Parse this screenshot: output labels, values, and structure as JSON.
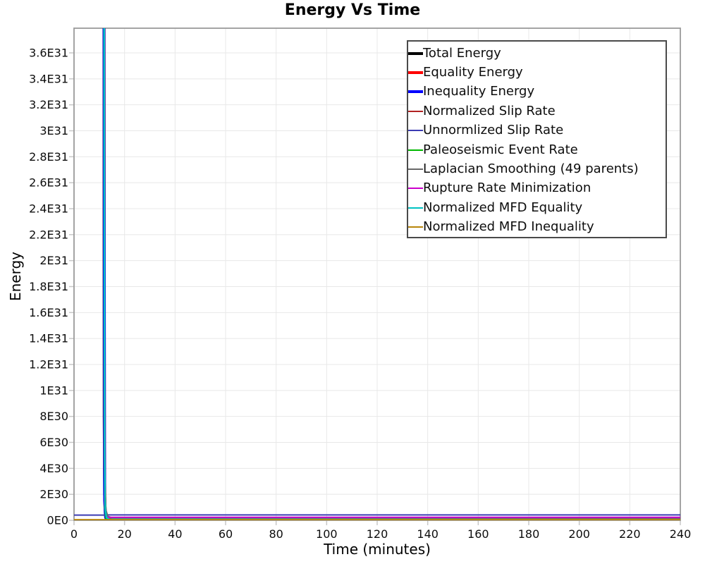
{
  "page": {
    "background": "#ffffff"
  },
  "chart_data": {
    "type": "line",
    "title": "Energy Vs Time",
    "xlabel": "Time (minutes)",
    "ylabel": "Energy",
    "xlim": [
      0,
      240
    ],
    "ylim": [
      0,
      3.79e+31
    ],
    "grid": true,
    "grid_color": "#e8e8e8",
    "tick_color": "#c8c8c8",
    "border_color": "#9a9a9a",
    "legend_position": "top-right-inside",
    "x_ticks": [
      {
        "v": 0,
        "label": "0"
      },
      {
        "v": 20,
        "label": "20"
      },
      {
        "v": 40,
        "label": "40"
      },
      {
        "v": 60,
        "label": "60"
      },
      {
        "v": 80,
        "label": "80"
      },
      {
        "v": 100,
        "label": "100"
      },
      {
        "v": 120,
        "label": "120"
      },
      {
        "v": 140,
        "label": "140"
      },
      {
        "v": 160,
        "label": "160"
      },
      {
        "v": 180,
        "label": "180"
      },
      {
        "v": 200,
        "label": "200"
      },
      {
        "v": 220,
        "label": "220"
      },
      {
        "v": 240,
        "label": "240"
      }
    ],
    "y_ticks": [
      {
        "v": 0,
        "label": "0E0"
      },
      {
        "v": 2e+30,
        "label": "2E30"
      },
      {
        "v": 4e+30,
        "label": "4E30"
      },
      {
        "v": 6e+30,
        "label": "6E30"
      },
      {
        "v": 8e+30,
        "label": "8E30"
      },
      {
        "v": 1e+31,
        "label": "1E31"
      },
      {
        "v": 1.2e+31,
        "label": "1.2E31"
      },
      {
        "v": 1.4e+31,
        "label": "1.4E31"
      },
      {
        "v": 1.6e+31,
        "label": "1.6E31"
      },
      {
        "v": 1.8e+31,
        "label": "1.8E31"
      },
      {
        "v": 2e+31,
        "label": "2E31"
      },
      {
        "v": 2.2e+31,
        "label": "2.2E31"
      },
      {
        "v": 2.4e+31,
        "label": "2.4E31"
      },
      {
        "v": 2.6e+31,
        "label": "2.6E31"
      },
      {
        "v": 2.8e+31,
        "label": "2.8E31"
      },
      {
        "v": 3e+31,
        "label": "3E31"
      },
      {
        "v": 3.2e+31,
        "label": "3.2E31"
      },
      {
        "v": 3.4e+31,
        "label": "3.4E31"
      },
      {
        "v": 3.6e+31,
        "label": "3.6E31"
      }
    ],
    "series": [
      {
        "name": "Total Energy",
        "color": "#000000",
        "width": 4,
        "points": [
          [
            0,
            5e+31
          ],
          [
            11.8,
            5e+31
          ],
          [
            11.95,
            8e+30
          ],
          [
            12.1,
            2e+30
          ],
          [
            12.4,
            5e+29
          ],
          [
            13.2,
            1.7e+29
          ],
          [
            15,
            9.5e+28
          ],
          [
            20,
            8.5e+28
          ],
          [
            240,
            8e+28
          ]
        ]
      },
      {
        "name": "Equality Energy",
        "color": "#fe0000",
        "width": 4,
        "points": [
          [
            0,
            4.6e+31
          ],
          [
            11.85,
            4.6e+31
          ],
          [
            12.05,
            4e+30
          ],
          [
            12.3,
            8e+29
          ],
          [
            13,
            2e+29
          ],
          [
            15,
            6e+28
          ],
          [
            240,
            2.5e+28
          ]
        ]
      },
      {
        "name": "Inequality Energy",
        "color": "#0000fe",
        "width": 4,
        "points": [
          [
            0,
            4.3e+31
          ],
          [
            11.85,
            4.3e+31
          ],
          [
            12.1,
            1.5e+30
          ],
          [
            12.5,
            2e+29
          ],
          [
            13.5,
            3e+28
          ],
          [
            240,
            8e+27
          ]
        ]
      },
      {
        "name": "Normalized Slip Rate",
        "color": "#b22222",
        "width": 2,
        "points": [
          [
            0,
            4.7e+31
          ],
          [
            12.0,
            4.7e+31
          ],
          [
            12.2,
            2e+30
          ],
          [
            12.5,
            4e+29
          ],
          [
            13.2,
            1.3e+29
          ],
          [
            16,
            6e+28
          ],
          [
            240,
            4.5e+28
          ]
        ]
      },
      {
        "name": "Unnormlized Slip Rate",
        "color": "#3c3cb4",
        "width": 2,
        "points": [
          [
            0,
            4e+29
          ],
          [
            12,
            4e+29
          ],
          [
            13,
            4.1e+29
          ],
          [
            240,
            4.1e+29
          ]
        ]
      },
      {
        "name": "Paleoseismic Event Rate",
        "color": "#00b800",
        "width": 2,
        "points": [
          [
            0,
            4.35e+31
          ],
          [
            11.9,
            4.35e+31
          ],
          [
            12.15,
            1e+30
          ],
          [
            12.6,
            1.5e+29
          ],
          [
            14,
            4e+28
          ],
          [
            240,
            1.5e+28
          ]
        ]
      },
      {
        "name": "Laplacian Smoothing (49 parents)",
        "color": "#696969",
        "width": 2,
        "points": [
          [
            0,
            4.4e+31
          ],
          [
            11.95,
            4.4e+31
          ],
          [
            12.2,
            3e+30
          ],
          [
            12.6,
            8e+29
          ],
          [
            13.4,
            3e+29
          ],
          [
            15.5,
            1.7e+29
          ],
          [
            20,
            1.55e+29
          ],
          [
            240,
            1.5e+29
          ]
        ]
      },
      {
        "name": "Rupture Rate Minimization",
        "color": "#cc00cc",
        "width": 2,
        "points": [
          [
            0,
            4.3e+31
          ],
          [
            11.95,
            4.3e+31
          ],
          [
            12.2,
            1.2e+30
          ],
          [
            12.7,
            3.2e+29
          ],
          [
            13.5,
            2.35e+29
          ],
          [
            240,
            2.3e+29
          ]
        ]
      },
      {
        "name": "Normalized MFD Equality",
        "color": "#00c2c2",
        "width": 2.5,
        "points": [
          [
            0,
            4.9e+31
          ],
          [
            11.9,
            4.9e+31
          ],
          [
            12.1,
            5e+30
          ],
          [
            12.35,
            8e+29
          ],
          [
            12.9,
            2e+29
          ],
          [
            14,
            7e+28
          ],
          [
            240,
            3.5e+28
          ]
        ]
      },
      {
        "name": "Normalized MFD Inequality",
        "color": "#b8860b",
        "width": 2,
        "points": [
          [
            0,
            5e+28
          ],
          [
            240,
            5e+28
          ]
        ]
      }
    ]
  }
}
